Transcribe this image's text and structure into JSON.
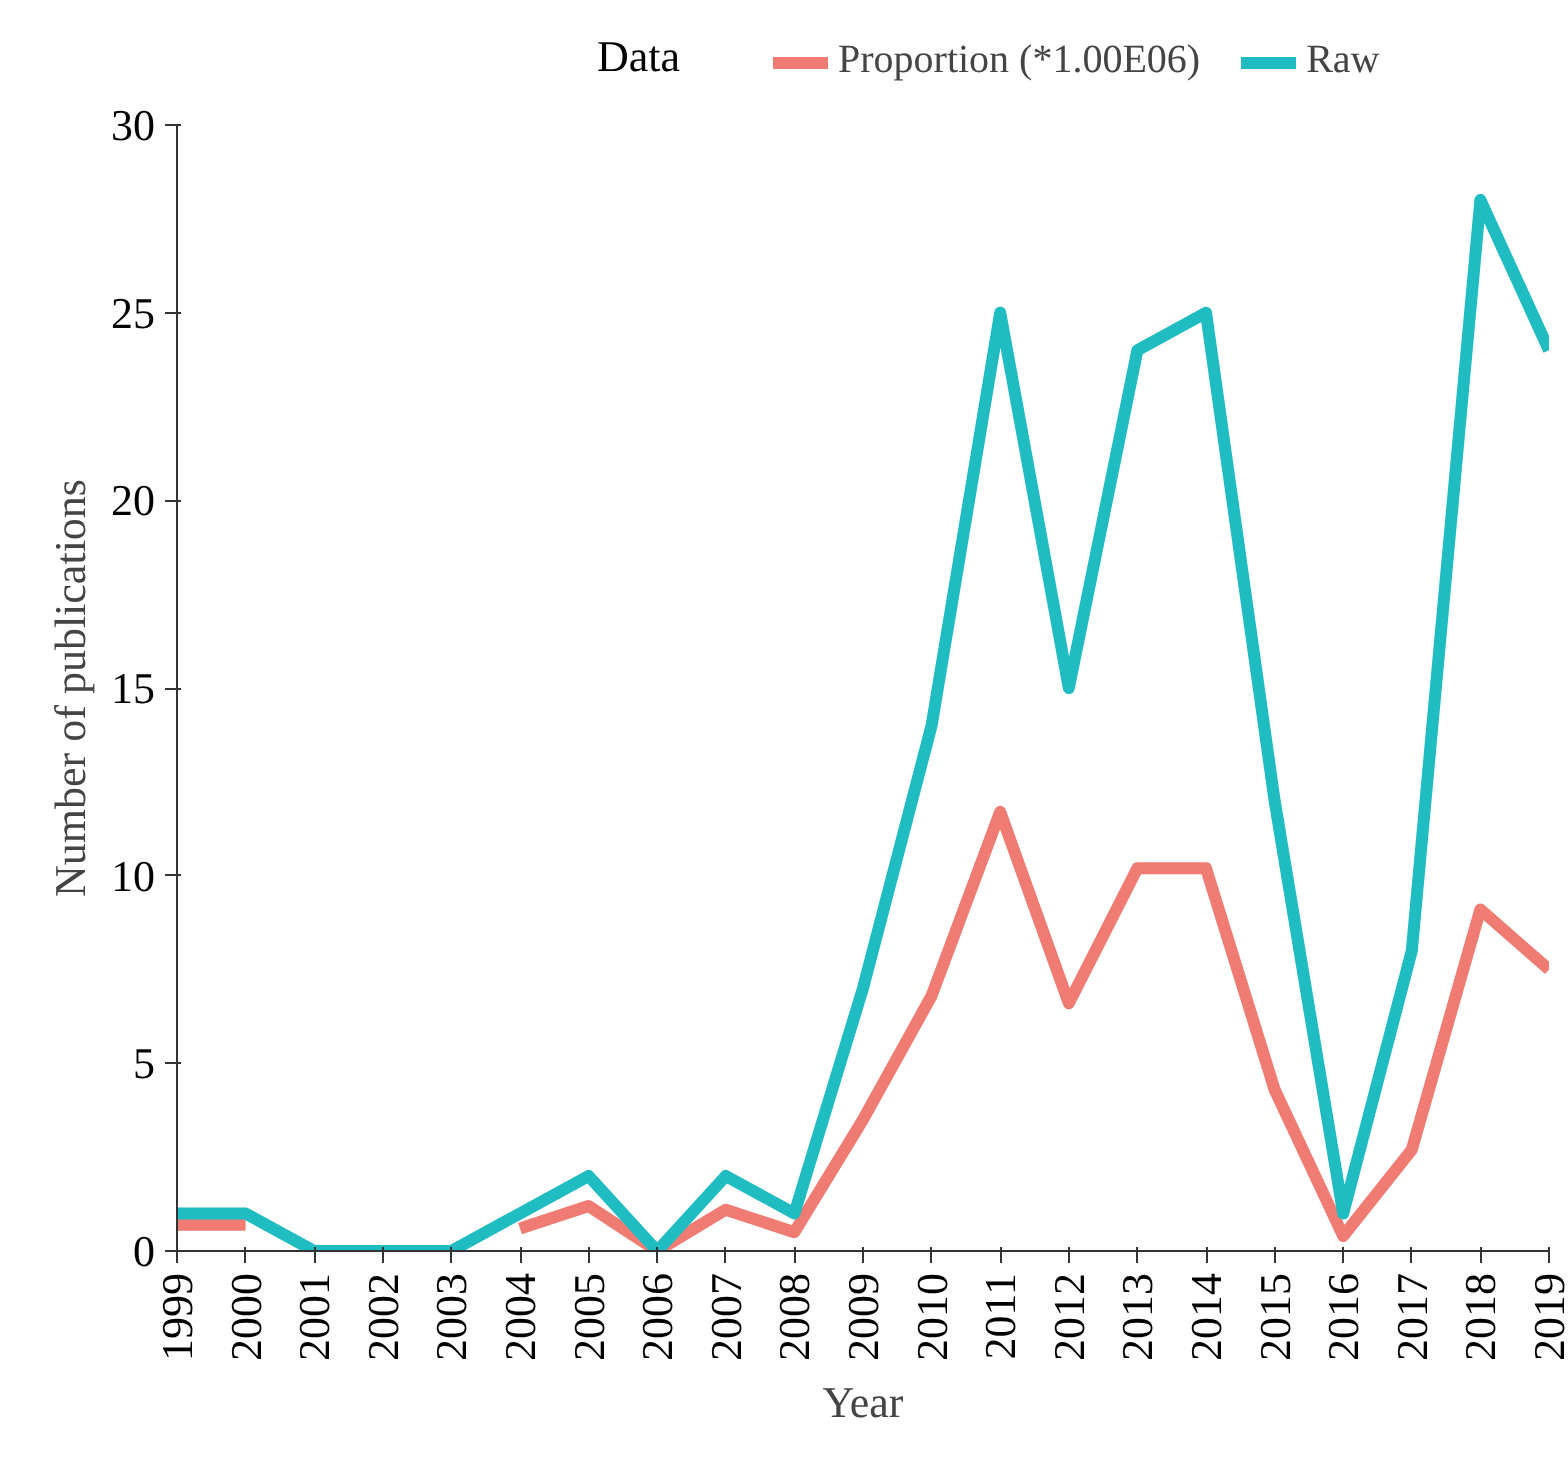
{
  "chart_data": {
    "type": "line",
    "xlabel": "Year",
    "ylabel": "Number of publications",
    "legend_title": "Data",
    "legend": "top",
    "x": [
      1999,
      2000,
      2001,
      2002,
      2003,
      2004,
      2005,
      2006,
      2007,
      2008,
      2009,
      2010,
      2011,
      2012,
      2013,
      2014,
      2015,
      2016,
      2017,
      2018,
      2019
    ],
    "xlim": [
      1999,
      2019
    ],
    "xticks": [
      1999,
      2000,
      2001,
      2002,
      2003,
      2004,
      2005,
      2006,
      2007,
      2008,
      2009,
      2010,
      2011,
      2012,
      2013,
      2014,
      2015,
      2016,
      2017,
      2018,
      2019
    ],
    "ylim": [
      0,
      30
    ],
    "yticks": [
      0,
      5,
      10,
      15,
      20,
      25,
      30
    ],
    "grid": false,
    "line_style": "solid",
    "series": [
      {
        "name": "Proportion (*1.00E06)",
        "color": "#f07b72",
        "values": [
          0.7,
          0.7,
          null,
          null,
          null,
          0.6,
          1.2,
          0,
          1.1,
          0.5,
          3.5,
          6.8,
          11.7,
          6.6,
          10.2,
          10.2,
          4.3,
          0.4,
          2.7,
          9.1,
          7.5
        ]
      },
      {
        "name": "Raw",
        "color": "#1fbcc2",
        "values": [
          1,
          1,
          0,
          0,
          0,
          1,
          2,
          0,
          2,
          1,
          7,
          14,
          25,
          15,
          24,
          25,
          12,
          1,
          8,
          28,
          24
        ]
      }
    ]
  }
}
